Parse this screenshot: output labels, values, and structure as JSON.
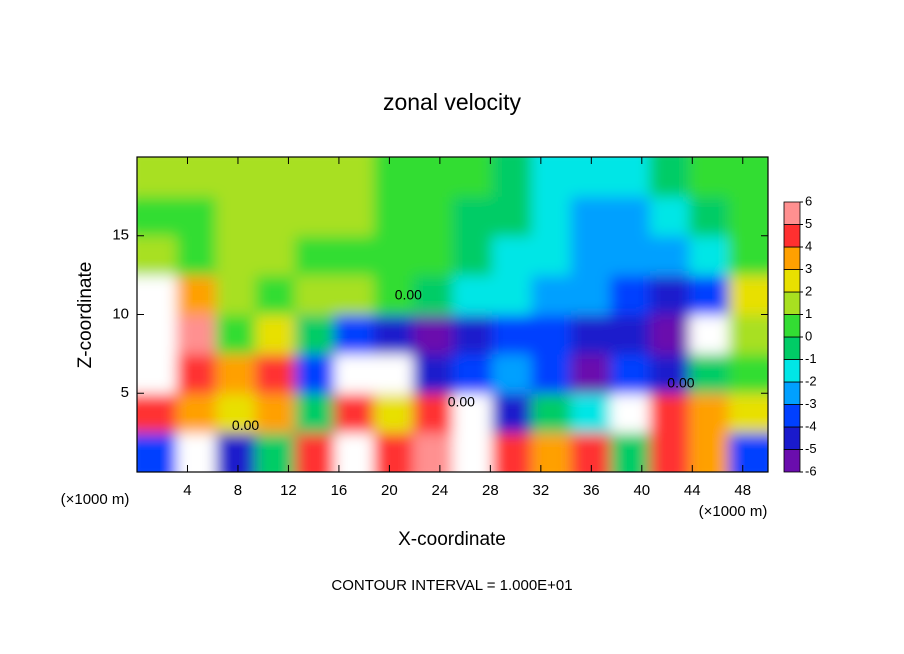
{
  "chart_data": {
    "type": "contourf",
    "title": "zonal velocity",
    "x_label": "X-coordinate",
    "y_label": "Z-coordinate",
    "x_unit": "(×1000 m)",
    "y_unit": "(×1000 m)",
    "footer": "CONTOUR INTERVAL = 1.000E+01",
    "xlim": [
      0,
      50
    ],
    "ylim": [
      0,
      20
    ],
    "xticks": [
      4,
      8,
      12,
      16,
      20,
      24,
      28,
      32,
      36,
      40,
      44,
      48
    ],
    "yticks": [
      5,
      10,
      15
    ],
    "z": [
      [
        -3,
        7,
        -4,
        0,
        5,
        7,
        5,
        6,
        7,
        5,
        4,
        5,
        0,
        5,
        4,
        -3
      ],
      [
        5,
        4,
        3,
        4,
        0,
        5,
        3,
        5,
        7,
        -4,
        0,
        -1,
        7,
        5,
        4,
        3
      ],
      [
        7,
        5,
        4,
        5,
        -3,
        7,
        7,
        -4,
        -3,
        -2,
        -3,
        -5,
        -3,
        -4,
        0,
        1
      ],
      [
        7,
        6,
        1,
        3,
        -0.5,
        -3,
        -4.5,
        -5,
        -4,
        -3,
        -3,
        -4,
        -4,
        -5,
        7,
        2
      ],
      [
        7,
        4,
        1.5,
        1,
        1.5,
        2,
        1,
        -0.5,
        -1,
        -1.3,
        -2,
        -2.5,
        -3,
        -4,
        -3,
        3
      ],
      [
        1.5,
        1,
        1.2,
        1.2,
        1,
        1,
        0.8,
        0.5,
        -0.3,
        -1,
        -1.8,
        -2.3,
        -2.5,
        -2.5,
        -1,
        0.5
      ],
      [
        1,
        1,
        1.2,
        1.3,
        1.2,
        1.2,
        1,
        0.5,
        -0.3,
        -0.8,
        -1.5,
        -2,
        -2,
        -1.5,
        -0.5,
        0.3
      ],
      [
        1.2,
        1.3,
        1.2,
        1.3,
        1.4,
        1.2,
        1,
        0.8,
        0.3,
        -0.5,
        -1.5,
        -1.8,
        -1.5,
        -0.5,
        0.3,
        0.5
      ]
    ],
    "contour_labels": [
      {
        "text": "0.00",
        "x": 21.5,
        "z": 11.2
      },
      {
        "text": "0.00",
        "x": 8.6,
        "z": 2.9
      },
      {
        "text": "0.00",
        "x": 25.7,
        "z": 4.4
      },
      {
        "text": "0.00",
        "x": 43.1,
        "z": 5.6
      }
    ],
    "colorbar": {
      "levels": [
        -6,
        -5,
        -4,
        -3,
        -2,
        -1,
        0,
        1,
        2,
        3,
        4,
        5,
        6
      ],
      "colors": [
        "#6a0dad",
        "#1a1acc",
        "#0040ff",
        "#00a0ff",
        "#00e6e6",
        "#00cc66",
        "#33dd33",
        "#a8e020",
        "#e8e000",
        "#ffa000",
        "#ff3030",
        "#ff9090"
      ],
      "over_color": "#ffffff"
    }
  }
}
